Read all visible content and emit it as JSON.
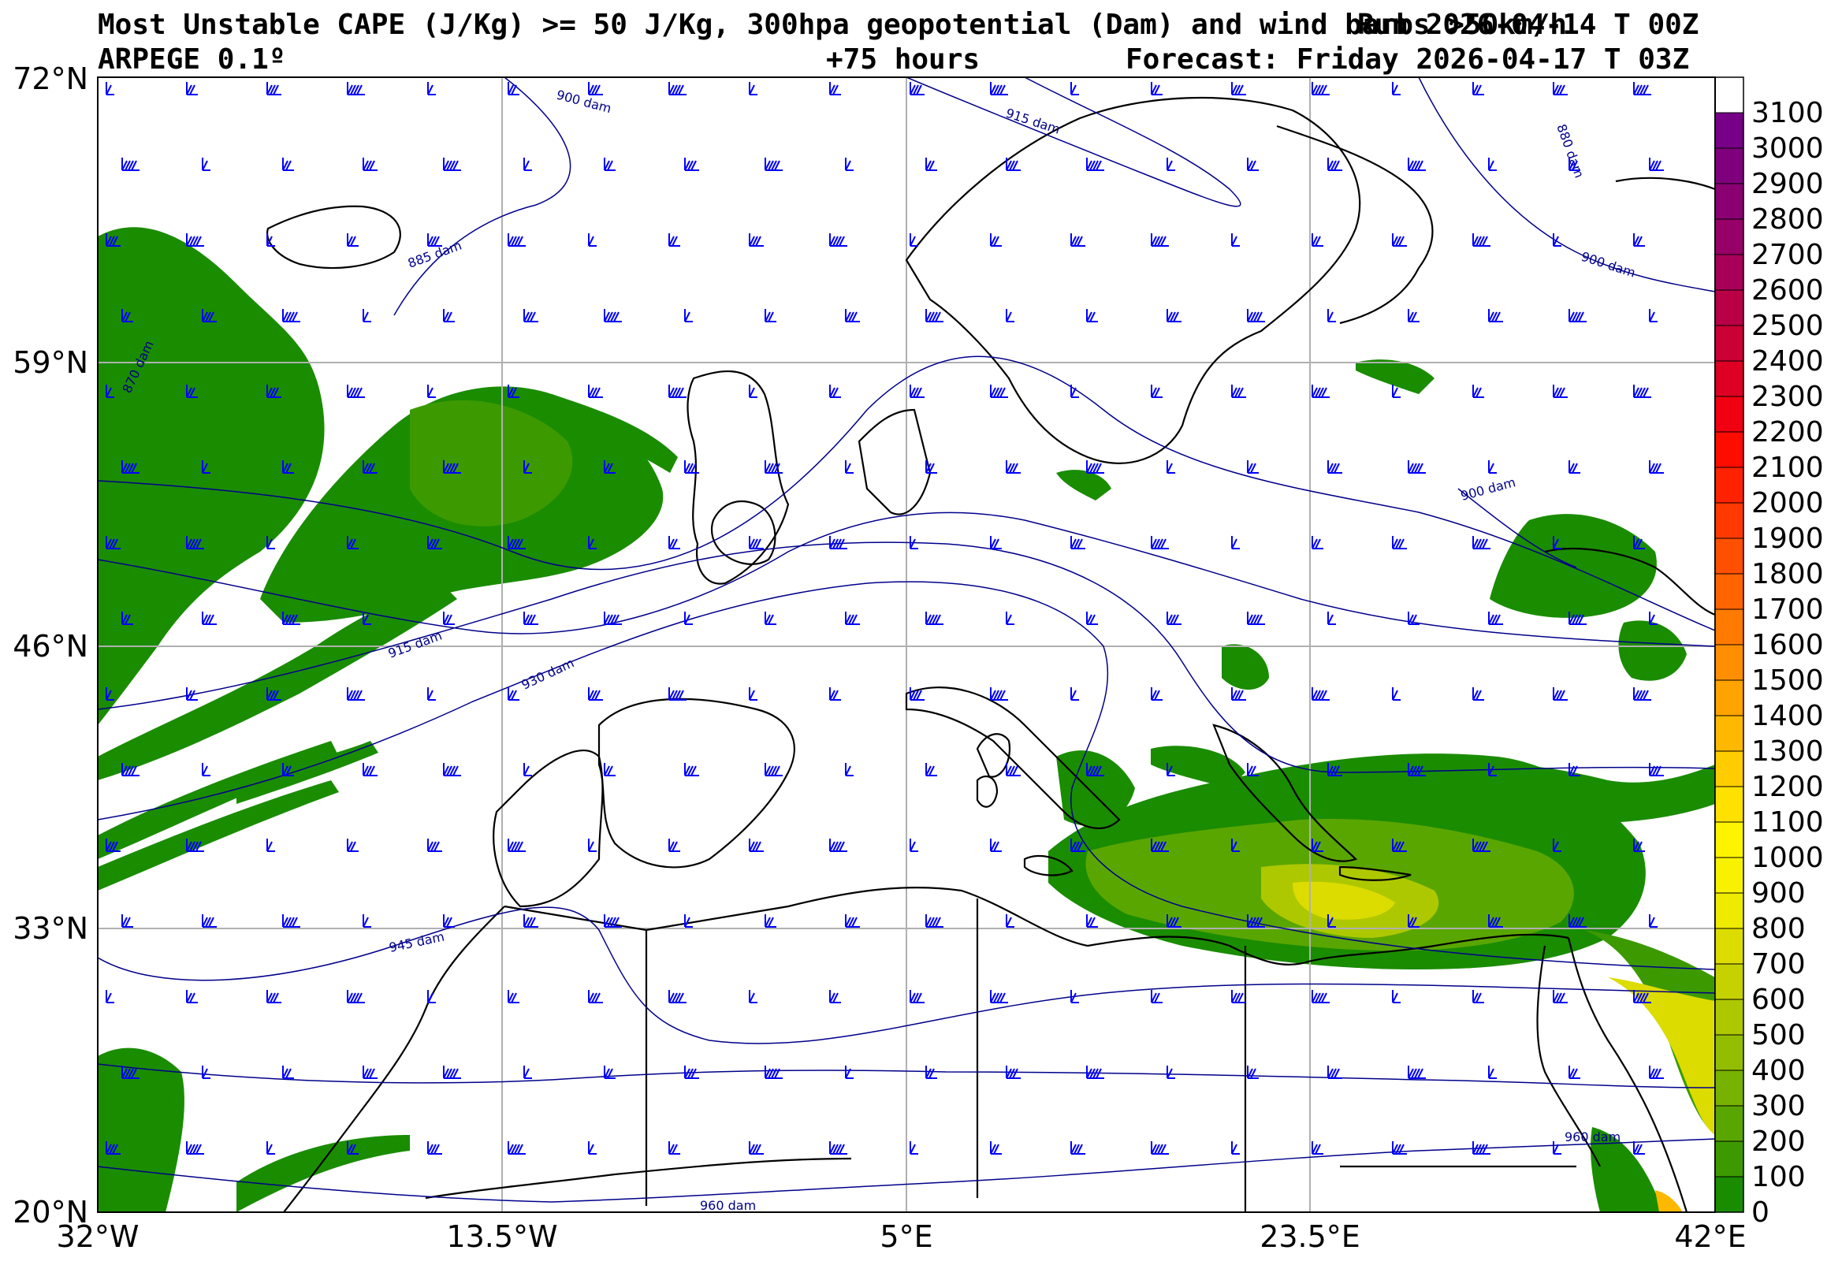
{
  "header": {
    "title": "Most Unstable CAPE (J/Kg) >= 50 J/Kg, 300hpa geopotential (Dam) and wind barbs >50km/h",
    "model": "ARPEGE 0.1º",
    "run": "Run 2026-04-14 T 00Z",
    "lead": "+75 hours",
    "forecast": "Forecast: Friday 2026-04-17 T 03Z"
  },
  "map": {
    "lat_labels": [
      "72°N",
      "59°N",
      "46°N",
      "33°N",
      "20°N"
    ],
    "lon_labels": [
      "32°W",
      "13.5°W",
      "5°E",
      "23.5°E",
      "42°E"
    ],
    "contour_labels": [
      "900 dam",
      "915 dam",
      "880 dam",
      "900 dam",
      "885 dam",
      "870 dam",
      "915 dam",
      "930 dam",
      "900 dam",
      "945 dam",
      "960 dam",
      "960 dam"
    ],
    "colors": {
      "contour": "#00008b",
      "barb": "#0000ff",
      "grid": "#b0b0b0",
      "coast": "#000000"
    }
  },
  "colorbar": {
    "ticks": [
      "0",
      "100",
      "200",
      "300",
      "400",
      "500",
      "600",
      "700",
      "800",
      "900",
      "1000",
      "1100",
      "1200",
      "1300",
      "1400",
      "1500",
      "1600",
      "1700",
      "1800",
      "1900",
      "2000",
      "2100",
      "2200",
      "2300",
      "2400",
      "2500",
      "2600",
      "2700",
      "2800",
      "2900",
      "3000",
      "3100"
    ],
    "colors": [
      "#1a8c00",
      "#3c9a00",
      "#5aa600",
      "#77b200",
      "#93bd00",
      "#aec800",
      "#c6d200",
      "#dcdc00",
      "#eeea00",
      "#f8f200",
      "#fff400",
      "#ffe100",
      "#ffcc00",
      "#ffb800",
      "#ffa300",
      "#ff8f00",
      "#ff7a00",
      "#ff6400",
      "#ff4f00",
      "#ff3900",
      "#ff2200",
      "#ff0c00",
      "#f00010",
      "#dd0022",
      "#cb0034",
      "#b90046",
      "#a80058",
      "#970066",
      "#8a0072",
      "#7f007c",
      "#760086"
    ]
  }
}
